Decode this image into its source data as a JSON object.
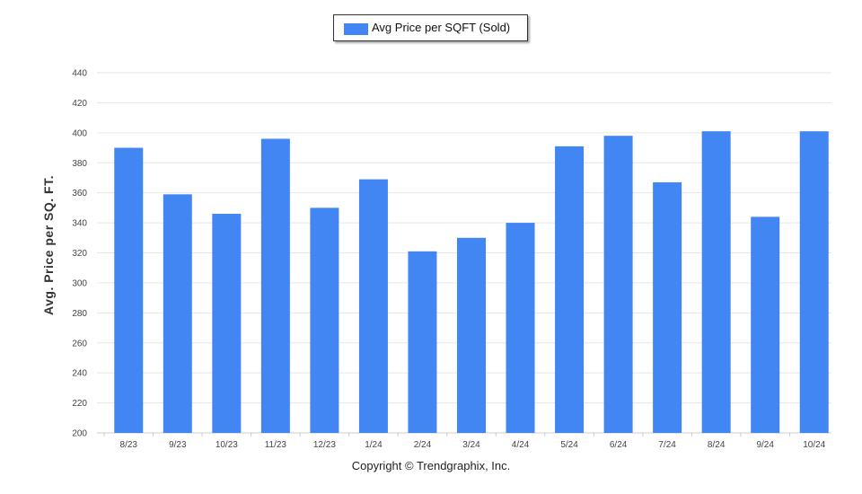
{
  "legend": {
    "label": "Avg Price per SQFT (Sold)"
  },
  "copyright": "Copyright © Trendgraphix, Inc.",
  "chart_data": {
    "type": "bar",
    "categories": [
      "8/23",
      "9/23",
      "10/23",
      "11/23",
      "12/23",
      "1/24",
      "2/24",
      "3/24",
      "4/24",
      "5/24",
      "6/24",
      "7/24",
      "8/24",
      "9/24",
      "10/24"
    ],
    "series": [
      {
        "name": "Avg Price per SQFT (Sold)",
        "values": [
          390,
          359,
          346,
          396,
          350,
          369,
          321,
          330,
          340,
          391,
          398,
          367,
          401,
          344,
          401
        ],
        "color": "#4286f4"
      }
    ],
    "ylabel": "Avg. Price per SQ. FT.",
    "ylim": [
      200,
      440
    ],
    "yticks": [
      200,
      220,
      240,
      260,
      280,
      300,
      320,
      340,
      360,
      380,
      400,
      420,
      440
    ],
    "grid": true,
    "legend_position": "top-center"
  }
}
